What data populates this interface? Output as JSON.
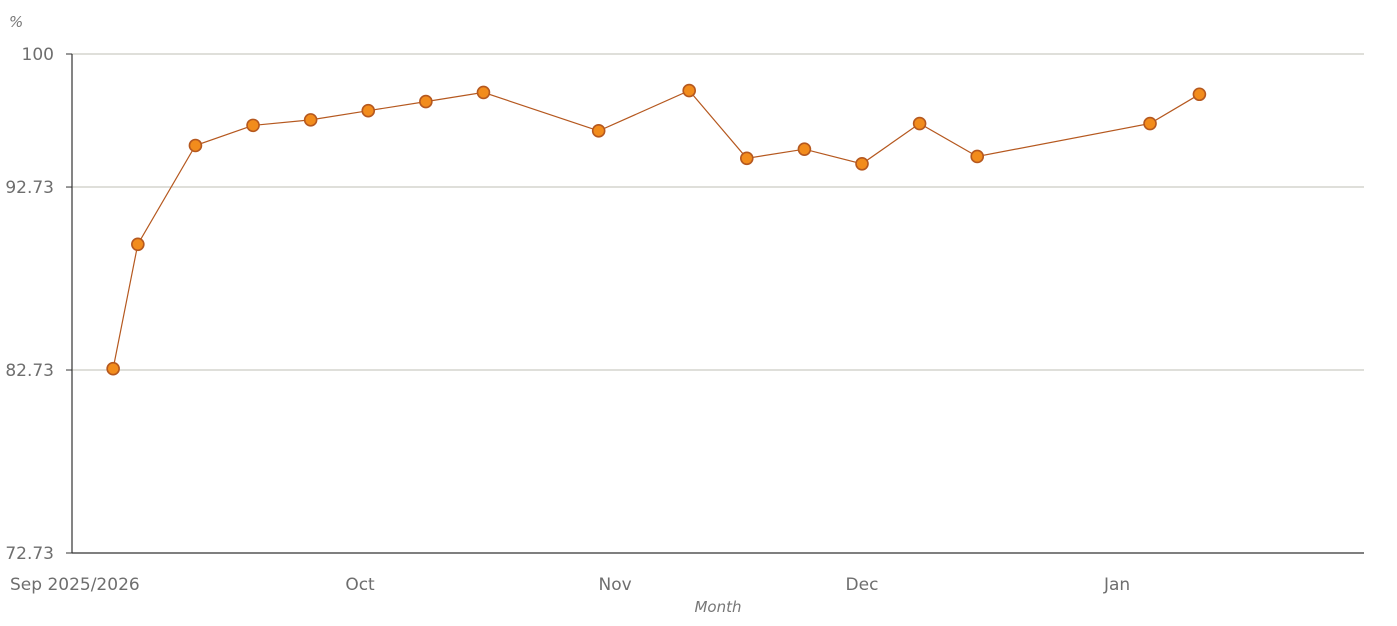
{
  "chart_data": {
    "type": "line",
    "xlabel": "Month",
    "ylabel": "%",
    "ylim": [
      72.73,
      100
    ],
    "yticks": [
      {
        "value": 100,
        "label": "100"
      },
      {
        "value": 92.73,
        "label": "92.73"
      },
      {
        "value": 82.73,
        "label": "82.73"
      },
      {
        "value": 72.73,
        "label": "72.73"
      }
    ],
    "xlim": [
      "2025-08-27",
      "2026-01-31"
    ],
    "xticks": [
      {
        "date": "2025-08-27",
        "label": "Sep 2025/2026"
      },
      {
        "date": "2025-10-01",
        "label": "Oct"
      },
      {
        "date": "2025-11-01",
        "label": "Nov"
      },
      {
        "date": "2025-12-01",
        "label": "Dec"
      },
      {
        "date": "2026-01-01",
        "label": "Jan"
      }
    ],
    "grid": true,
    "series": [
      {
        "color": "#b5581f",
        "marker_fill": "#f28c1c",
        "points": [
          {
            "x": "2025-09-01",
            "y": 82.8
          },
          {
            "x": "2025-09-04",
            "y": 89.6
          },
          {
            "x": "2025-09-11",
            "y": 95.0
          },
          {
            "x": "2025-09-18",
            "y": 96.1
          },
          {
            "x": "2025-09-25",
            "y": 96.4
          },
          {
            "x": "2025-10-02",
            "y": 96.9
          },
          {
            "x": "2025-10-09",
            "y": 97.4
          },
          {
            "x": "2025-10-16",
            "y": 97.9
          },
          {
            "x": "2025-10-30",
            "y": 95.8
          },
          {
            "x": "2025-11-10",
            "y": 98.0
          },
          {
            "x": "2025-11-17",
            "y": 94.3
          },
          {
            "x": "2025-11-24",
            "y": 94.8
          },
          {
            "x": "2025-12-01",
            "y": 94.0
          },
          {
            "x": "2025-12-08",
            "y": 96.2
          },
          {
            "x": "2025-12-15",
            "y": 94.4
          },
          {
            "x": "2026-01-05",
            "y": 96.2
          },
          {
            "x": "2026-01-11",
            "y": 97.8
          }
        ]
      }
    ]
  }
}
